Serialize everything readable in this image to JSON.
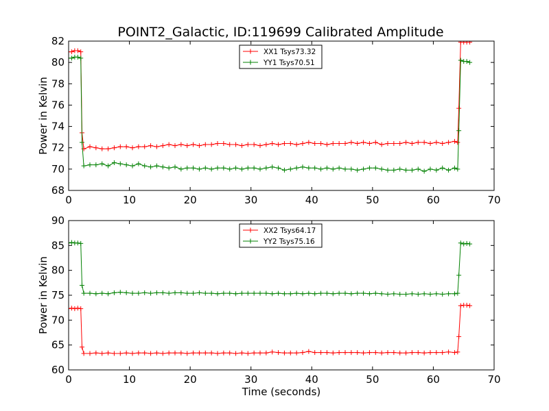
{
  "title": "POINT2_Galactic, ID:119699 Calibrated Amplitude",
  "chart_data": [
    {
      "type": "line",
      "ylabel": "Power in Kelvin",
      "xlabel": "",
      "xlim": [
        0,
        70
      ],
      "ylim": [
        68,
        82
      ],
      "xticks": [
        0,
        10,
        20,
        30,
        40,
        50,
        60,
        70
      ],
      "yticks": [
        68,
        70,
        72,
        74,
        76,
        78,
        80,
        82
      ],
      "grid": false,
      "legend_position": "top-center",
      "series": [
        {
          "name": "XX1 Tsys73.32",
          "color": "#ff0000",
          "x": [
            0.0,
            0.5,
            1.0,
            1.5,
            2.0,
            2.2,
            2.5,
            3.5,
            4.5,
            5.5,
            6.5,
            7.5,
            8.5,
            9.5,
            10.5,
            11.5,
            12.5,
            13.5,
            14.5,
            15.5,
            16.5,
            17.5,
            18.5,
            19.5,
            20.5,
            21.5,
            22.5,
            23.5,
            24.5,
            25.5,
            26.5,
            27.5,
            28.5,
            29.5,
            30.5,
            31.5,
            32.5,
            33.5,
            34.5,
            35.5,
            36.5,
            37.5,
            38.5,
            39.5,
            40.5,
            41.5,
            42.5,
            43.5,
            44.5,
            45.5,
            46.5,
            47.5,
            48.5,
            49.5,
            50.5,
            51.5,
            52.5,
            53.5,
            54.5,
            55.5,
            56.5,
            57.5,
            58.5,
            59.5,
            60.5,
            61.5,
            62.5,
            63.5,
            64.0,
            64.2,
            64.5,
            65.0,
            65.5,
            66.0
          ],
          "y": [
            81.0,
            81.0,
            81.1,
            81.1,
            81.0,
            73.4,
            71.9,
            72.1,
            72.0,
            71.9,
            71.9,
            72.0,
            72.1,
            72.1,
            72.0,
            72.1,
            72.1,
            72.2,
            72.1,
            72.2,
            72.3,
            72.2,
            72.3,
            72.2,
            72.3,
            72.2,
            72.3,
            72.3,
            72.4,
            72.4,
            72.3,
            72.3,
            72.2,
            72.3,
            72.3,
            72.2,
            72.3,
            72.4,
            72.3,
            72.4,
            72.4,
            72.3,
            72.4,
            72.5,
            72.4,
            72.4,
            72.3,
            72.4,
            72.4,
            72.4,
            72.5,
            72.4,
            72.5,
            72.4,
            72.5,
            72.3,
            72.4,
            72.4,
            72.4,
            72.5,
            72.4,
            72.5,
            72.5,
            72.4,
            72.5,
            72.4,
            72.5,
            72.6,
            72.5,
            75.7,
            81.9,
            81.9,
            81.9,
            81.9
          ]
        },
        {
          "name": "YY1 Tsys70.51",
          "color": "#008000",
          "x": [
            0.0,
            0.5,
            1.0,
            1.5,
            2.0,
            2.2,
            2.5,
            3.5,
            4.5,
            5.5,
            6.5,
            7.5,
            8.5,
            9.5,
            10.5,
            11.5,
            12.5,
            13.5,
            14.5,
            15.5,
            16.5,
            17.5,
            18.5,
            19.5,
            20.5,
            21.5,
            22.5,
            23.5,
            24.5,
            25.5,
            26.5,
            27.5,
            28.5,
            29.5,
            30.5,
            31.5,
            32.5,
            33.5,
            34.5,
            35.5,
            36.5,
            37.5,
            38.5,
            39.5,
            40.5,
            41.5,
            42.5,
            43.5,
            44.5,
            45.5,
            46.5,
            47.5,
            48.5,
            49.5,
            50.5,
            51.5,
            52.5,
            53.5,
            54.5,
            55.5,
            56.5,
            57.5,
            58.5,
            59.5,
            60.5,
            61.5,
            62.5,
            63.5,
            64.0,
            64.2,
            64.5,
            65.0,
            65.5,
            66.0
          ],
          "y": [
            80.4,
            80.4,
            80.5,
            80.5,
            80.4,
            72.5,
            70.3,
            70.4,
            70.4,
            70.5,
            70.3,
            70.6,
            70.5,
            70.4,
            70.3,
            70.5,
            70.3,
            70.2,
            70.3,
            70.2,
            70.1,
            70.2,
            70.0,
            70.1,
            70.1,
            70.0,
            70.1,
            70.0,
            70.1,
            70.1,
            70.0,
            70.1,
            70.0,
            70.1,
            70.1,
            70.0,
            70.1,
            70.2,
            70.1,
            69.9,
            70.0,
            70.1,
            70.2,
            70.1,
            70.1,
            70.0,
            70.1,
            70.0,
            70.1,
            70.0,
            70.0,
            69.9,
            70.0,
            70.1,
            70.1,
            70.0,
            69.9,
            69.9,
            70.0,
            69.9,
            69.9,
            70.0,
            69.8,
            70.0,
            69.9,
            70.1,
            69.9,
            70.1,
            70.0,
            73.6,
            80.2,
            80.1,
            80.1,
            80.0
          ]
        }
      ]
    },
    {
      "type": "line",
      "ylabel": "Power in Kelvin",
      "xlabel": "Time (seconds)",
      "xlim": [
        0,
        70
      ],
      "ylim": [
        60,
        90
      ],
      "xticks": [
        0,
        10,
        20,
        30,
        40,
        50,
        60,
        70
      ],
      "yticks": [
        60,
        65,
        70,
        75,
        80,
        85,
        90
      ],
      "grid": false,
      "legend_position": "top-center",
      "series": [
        {
          "name": "XX2 Tsys64.17",
          "color": "#ff0000",
          "x": [
            0.0,
            0.5,
            1.0,
            1.5,
            2.0,
            2.2,
            2.5,
            3.5,
            4.5,
            5.5,
            6.5,
            7.5,
            8.5,
            9.5,
            10.5,
            11.5,
            12.5,
            13.5,
            14.5,
            15.5,
            16.5,
            17.5,
            18.5,
            19.5,
            20.5,
            21.5,
            22.5,
            23.5,
            24.5,
            25.5,
            26.5,
            27.5,
            28.5,
            29.5,
            30.5,
            31.5,
            32.5,
            33.5,
            34.5,
            35.5,
            36.5,
            37.5,
            38.5,
            39.5,
            40.5,
            41.5,
            42.5,
            43.5,
            44.5,
            45.5,
            46.5,
            47.5,
            48.5,
            49.5,
            50.5,
            51.5,
            52.5,
            53.5,
            54.5,
            55.5,
            56.5,
            57.5,
            58.5,
            59.5,
            60.5,
            61.5,
            62.5,
            63.5,
            64.0,
            64.2,
            64.5,
            65.0,
            65.5,
            66.0
          ],
          "y": [
            72.3,
            72.4,
            72.3,
            72.4,
            72.3,
            64.6,
            63.3,
            63.3,
            63.4,
            63.3,
            63.4,
            63.3,
            63.3,
            63.4,
            63.3,
            63.4,
            63.4,
            63.3,
            63.4,
            63.3,
            63.4,
            63.4,
            63.4,
            63.3,
            63.4,
            63.4,
            63.4,
            63.4,
            63.3,
            63.4,
            63.4,
            63.3,
            63.4,
            63.3,
            63.4,
            63.4,
            63.4,
            63.6,
            63.5,
            63.4,
            63.4,
            63.4,
            63.5,
            63.7,
            63.5,
            63.5,
            63.5,
            63.4,
            63.5,
            63.5,
            63.5,
            63.5,
            63.4,
            63.5,
            63.5,
            63.4,
            63.5,
            63.5,
            63.4,
            63.4,
            63.5,
            63.5,
            63.4,
            63.5,
            63.5,
            63.5,
            63.6,
            63.5,
            63.6,
            66.7,
            72.9,
            73.0,
            73.0,
            72.9
          ]
        },
        {
          "name": "YY2 Tsys75.16",
          "color": "#008000",
          "x": [
            0.0,
            0.5,
            1.0,
            1.5,
            2.0,
            2.2,
            2.5,
            3.5,
            4.5,
            5.5,
            6.5,
            7.5,
            8.5,
            9.5,
            10.5,
            11.5,
            12.5,
            13.5,
            14.5,
            15.5,
            16.5,
            17.5,
            18.5,
            19.5,
            20.5,
            21.5,
            22.5,
            23.5,
            24.5,
            25.5,
            26.5,
            27.5,
            28.5,
            29.5,
            30.5,
            31.5,
            32.5,
            33.5,
            34.5,
            35.5,
            36.5,
            37.5,
            38.5,
            39.5,
            40.5,
            41.5,
            42.5,
            43.5,
            44.5,
            45.5,
            46.5,
            47.5,
            48.5,
            49.5,
            50.5,
            51.5,
            52.5,
            53.5,
            54.5,
            55.5,
            56.5,
            57.5,
            58.5,
            59.5,
            60.5,
            61.5,
            62.5,
            63.5,
            64.0,
            64.2,
            64.5,
            65.0,
            65.5,
            66.0
          ],
          "y": [
            85.5,
            85.6,
            85.5,
            85.5,
            85.4,
            77.0,
            75.4,
            75.4,
            75.3,
            75.4,
            75.3,
            75.5,
            75.6,
            75.5,
            75.4,
            75.4,
            75.5,
            75.4,
            75.5,
            75.5,
            75.4,
            75.5,
            75.5,
            75.4,
            75.4,
            75.5,
            75.4,
            75.4,
            75.3,
            75.4,
            75.4,
            75.3,
            75.4,
            75.4,
            75.4,
            75.4,
            75.4,
            75.3,
            75.4,
            75.3,
            75.3,
            75.4,
            75.3,
            75.4,
            75.3,
            75.4,
            75.4,
            75.3,
            75.4,
            75.4,
            75.3,
            75.4,
            75.4,
            75.3,
            75.4,
            75.3,
            75.2,
            75.3,
            75.2,
            75.2,
            75.3,
            75.2,
            75.3,
            75.2,
            75.3,
            75.2,
            75.3,
            75.3,
            75.4,
            79.0,
            85.5,
            85.3,
            85.4,
            85.3
          ]
        }
      ]
    }
  ]
}
